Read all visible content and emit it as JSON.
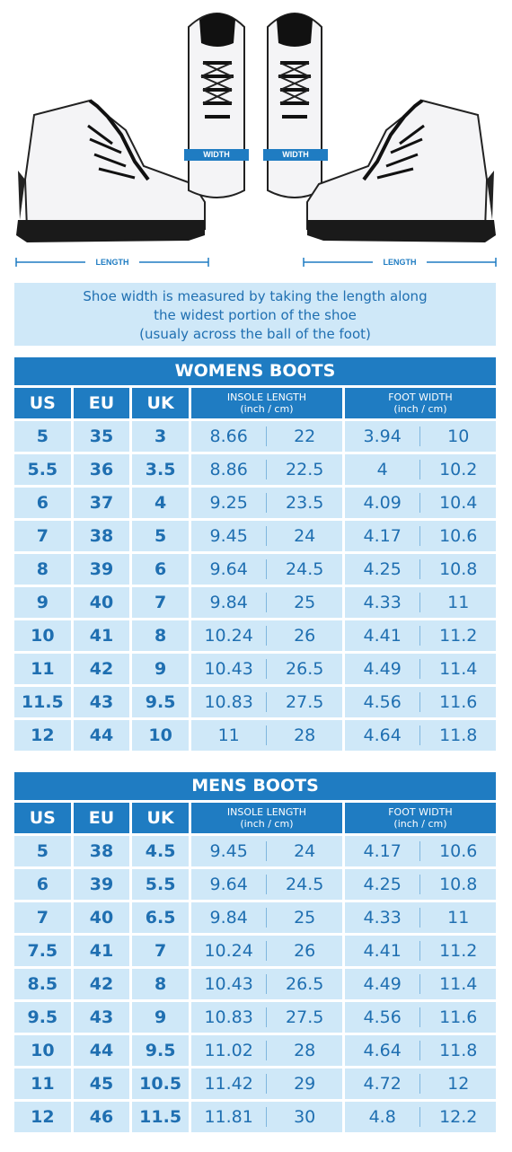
{
  "images": {
    "length_label": "LENGTH",
    "width_label": "WIDTH"
  },
  "info": {
    "line1": "Shoe width is measured by taking the length along",
    "line2": "the widest portion of the shoe",
    "line3": "(usualy across the ball of the foot)"
  },
  "columns": {
    "us": "US",
    "eu": "EU",
    "uk": "UK",
    "insole": "INSOLE LENGTH",
    "foot": "FOOT WIDTH",
    "units": "(inch / cm)"
  },
  "womens": {
    "title": "WOMENS BOOTS",
    "rows": [
      [
        "5",
        "35",
        "3",
        "8.66",
        "22",
        "3.94",
        "10"
      ],
      [
        "5.5",
        "36",
        "3.5",
        "8.86",
        "22.5",
        "4",
        "10.2"
      ],
      [
        "6",
        "37",
        "4",
        "9.25",
        "23.5",
        "4.09",
        "10.4"
      ],
      [
        "7",
        "38",
        "5",
        "9.45",
        "24",
        "4.17",
        "10.6"
      ],
      [
        "8",
        "39",
        "6",
        "9.64",
        "24.5",
        "4.25",
        "10.8"
      ],
      [
        "9",
        "40",
        "7",
        "9.84",
        "25",
        "4.33",
        "11"
      ],
      [
        "10",
        "41",
        "8",
        "10.24",
        "26",
        "4.41",
        "11.2"
      ],
      [
        "11",
        "42",
        "9",
        "10.43",
        "26.5",
        "4.49",
        "11.4"
      ],
      [
        "11.5",
        "43",
        "9.5",
        "10.83",
        "27.5",
        "4.56",
        "11.6"
      ],
      [
        "12",
        "44",
        "10",
        "11",
        "28",
        "4.64",
        "11.8"
      ]
    ]
  },
  "mens": {
    "title": "MENS BOOTS",
    "rows": [
      [
        "5",
        "38",
        "4.5",
        "9.45",
        "24",
        "4.17",
        "10.6"
      ],
      [
        "6",
        "39",
        "5.5",
        "9.64",
        "24.5",
        "4.25",
        "10.8"
      ],
      [
        "7",
        "40",
        "6.5",
        "9.84",
        "25",
        "4.33",
        "11"
      ],
      [
        "7.5",
        "41",
        "7",
        "10.24",
        "26",
        "4.41",
        "11.2"
      ],
      [
        "8.5",
        "42",
        "8",
        "10.43",
        "26.5",
        "4.49",
        "11.4"
      ],
      [
        "9.5",
        "43",
        "9",
        "10.83",
        "27.5",
        "4.56",
        "11.6"
      ],
      [
        "10",
        "44",
        "9.5",
        "11.02",
        "28",
        "4.64",
        "11.8"
      ],
      [
        "11",
        "45",
        "10.5",
        "11.42",
        "29",
        "4.72",
        "12"
      ],
      [
        "12",
        "46",
        "11.5",
        "11.81",
        "30",
        "4.8",
        "12.2"
      ]
    ]
  }
}
